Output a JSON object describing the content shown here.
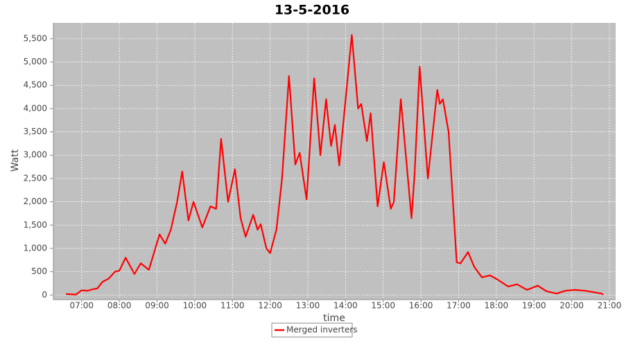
{
  "chart_data": {
    "type": "line",
    "title": "13-5-2016",
    "x_label": "time",
    "y_label": "Watt",
    "x": [
      "06:35",
      "06:51",
      "07:00",
      "07:09",
      "07:20",
      "07:25",
      "07:33",
      "07:43",
      "07:53",
      "08:00",
      "08:10",
      "08:24",
      "08:34",
      "08:47",
      "08:55",
      "09:04",
      "09:13",
      "09:22",
      "09:32",
      "09:40",
      "09:50",
      "09:58",
      "10:12",
      "10:25",
      "10:34",
      "10:42",
      "10:53",
      "11:04",
      "11:13",
      "11:21",
      "11:33",
      "11:40",
      "11:45",
      "11:54",
      "12:00",
      "12:10",
      "12:19",
      "12:30",
      "12:40",
      "12:47",
      "12:58",
      "13:10",
      "13:20",
      "13:29",
      "13:37",
      "13:43",
      "13:50",
      "14:10",
      "14:20",
      "14:25",
      "14:34",
      "14:40",
      "14:51",
      "15:01",
      "15:12",
      "15:17",
      "15:28",
      "15:45",
      "15:50",
      "15:58",
      "16:11",
      "16:26",
      "16:30",
      "16:35",
      "16:44",
      "16:57",
      "17:03",
      "17:15",
      "17:25",
      "17:37",
      "17:50",
      "18:02",
      "18:19",
      "18:33",
      "18:49",
      "19:06",
      "19:20",
      "19:36",
      "19:50",
      "20:05",
      "20:22",
      "20:47",
      "20:50"
    ],
    "series": [
      {
        "name": "Merged inverters",
        "color": "#ff0000",
        "values": [
          20,
          10,
          100,
          90,
          130,
          140,
          280,
          350,
          500,
          520,
          800,
          450,
          680,
          540,
          900,
          1300,
          1100,
          1400,
          2000,
          2650,
          1600,
          2000,
          1450,
          1900,
          1850,
          3350,
          2000,
          2700,
          1650,
          1250,
          1720,
          1400,
          1520,
          1000,
          900,
          1400,
          2500,
          4700,
          2800,
          3050,
          2050,
          4650,
          3000,
          4200,
          3200,
          3650,
          2780,
          5580,
          4000,
          4100,
          3300,
          3900,
          1900,
          2850,
          1850,
          2000,
          4200,
          1650,
          2600,
          4900,
          2500,
          4400,
          4100,
          4200,
          3500,
          700,
          680,
          920,
          600,
          380,
          420,
          330,
          180,
          230,
          110,
          200,
          80,
          30,
          90,
          110,
          90,
          30,
          10
        ]
      }
    ],
    "xlim": [
      "06:15",
      "21:10"
    ],
    "xticks": [
      "07:00",
      "08:00",
      "09:00",
      "10:00",
      "11:00",
      "12:00",
      "13:00",
      "14:00",
      "15:00",
      "16:00",
      "17:00",
      "18:00",
      "19:00",
      "20:00",
      "21:00"
    ],
    "ylim": [
      -100,
      5840
    ],
    "yticks": [
      0,
      500,
      {
        "value": 1000,
        "label": "1,000"
      },
      {
        "value": 1500,
        "label": "1,500"
      },
      {
        "value": 2000,
        "label": "2,000"
      },
      {
        "value": 2500,
        "label": "2,500"
      },
      {
        "value": 3000,
        "label": "3,000"
      },
      {
        "value": 3500,
        "label": "3,500"
      },
      {
        "value": 4000,
        "label": "4,000"
      },
      {
        "value": 4500,
        "label": "4,500"
      },
      {
        "value": 5000,
        "label": "5,000"
      },
      {
        "value": 5500,
        "label": "5,500"
      }
    ],
    "grid": true,
    "legend": "bottom"
  }
}
